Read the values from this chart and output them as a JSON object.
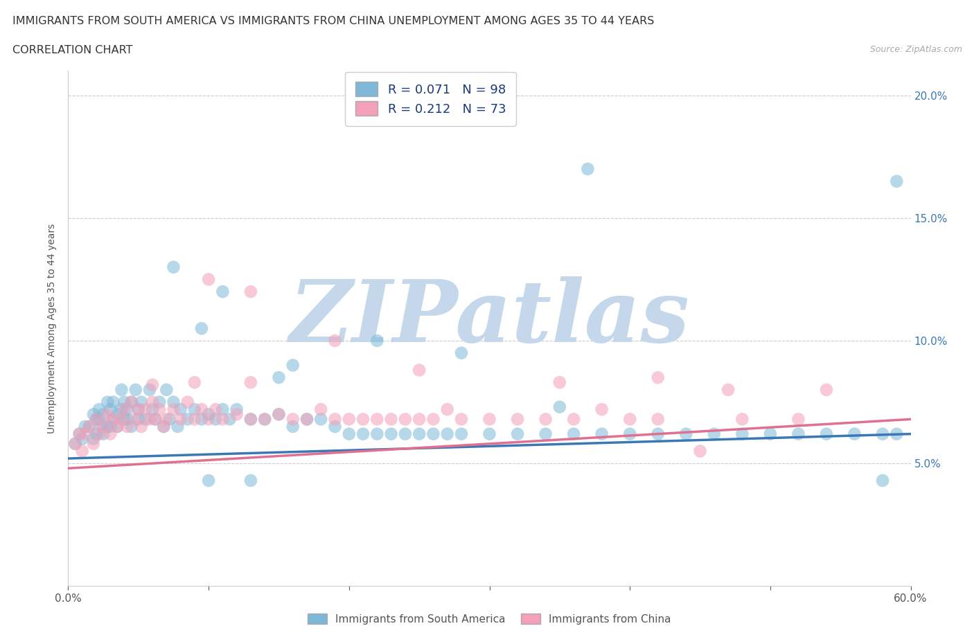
{
  "title_line1": "IMMIGRANTS FROM SOUTH AMERICA VS IMMIGRANTS FROM CHINA UNEMPLOYMENT AMONG AGES 35 TO 44 YEARS",
  "title_line2": "CORRELATION CHART",
  "source": "Source: ZipAtlas.com",
  "ylabel": "Unemployment Among Ages 35 to 44 years",
  "xlim": [
    0.0,
    0.6
  ],
  "ylim": [
    0.0,
    0.21
  ],
  "xticks": [
    0.0,
    0.1,
    0.2,
    0.3,
    0.4,
    0.5,
    0.6
  ],
  "xtick_labels": [
    "0.0%",
    "",
    "",
    "",
    "",
    "",
    "60.0%"
  ],
  "yticks": [
    0.05,
    0.1,
    0.15,
    0.2
  ],
  "ytick_labels": [
    "5.0%",
    "10.0%",
    "15.0%",
    "20.0%"
  ],
  "blue_color": "#7db8d8",
  "pink_color": "#f4a0b8",
  "legend_R1": "R = 0.071",
  "legend_N1": "N = 98",
  "legend_R2": "R = 0.212",
  "legend_N2": "N = 73",
  "watermark_text": "ZIPatlas",
  "watermark_color": "#c5d8eb",
  "blue_trend_x": [
    0.0,
    0.6
  ],
  "blue_trend_y": [
    0.052,
    0.062
  ],
  "pink_trend_x": [
    0.0,
    0.6
  ],
  "pink_trend_y": [
    0.048,
    0.068
  ],
  "grid_color": "#cccccc",
  "title_fontsize": 11.5,
  "label_fontsize": 10,
  "tick_fontsize": 11,
  "blue_scatter_x": [
    0.005,
    0.008,
    0.01,
    0.012,
    0.015,
    0.018,
    0.018,
    0.02,
    0.02,
    0.022,
    0.022,
    0.024,
    0.025,
    0.025,
    0.028,
    0.028,
    0.03,
    0.03,
    0.032,
    0.032,
    0.035,
    0.035,
    0.038,
    0.038,
    0.04,
    0.04,
    0.042,
    0.042,
    0.045,
    0.045,
    0.048,
    0.05,
    0.05,
    0.052,
    0.055,
    0.058,
    0.06,
    0.062,
    0.065,
    0.068,
    0.07,
    0.072,
    0.075,
    0.078,
    0.08,
    0.085,
    0.09,
    0.095,
    0.1,
    0.105,
    0.11,
    0.115,
    0.12,
    0.13,
    0.14,
    0.15,
    0.16,
    0.17,
    0.18,
    0.19,
    0.2,
    0.21,
    0.22,
    0.23,
    0.24,
    0.25,
    0.26,
    0.27,
    0.28,
    0.3,
    0.32,
    0.34,
    0.36,
    0.38,
    0.4,
    0.42,
    0.44,
    0.46,
    0.48,
    0.5,
    0.52,
    0.54,
    0.56,
    0.58,
    0.59,
    0.15,
    0.28,
    0.37,
    0.59,
    0.075,
    0.095,
    0.11,
    0.16,
    0.22,
    0.35,
    0.58,
    0.1,
    0.13
  ],
  "blue_scatter_y": [
    0.058,
    0.062,
    0.06,
    0.065,
    0.065,
    0.06,
    0.07,
    0.062,
    0.068,
    0.068,
    0.072,
    0.065,
    0.07,
    0.062,
    0.075,
    0.065,
    0.072,
    0.065,
    0.068,
    0.075,
    0.07,
    0.065,
    0.072,
    0.08,
    0.068,
    0.075,
    0.072,
    0.068,
    0.075,
    0.065,
    0.08,
    0.072,
    0.068,
    0.075,
    0.068,
    0.08,
    0.072,
    0.068,
    0.075,
    0.065,
    0.08,
    0.068,
    0.075,
    0.065,
    0.072,
    0.068,
    0.072,
    0.068,
    0.07,
    0.068,
    0.072,
    0.068,
    0.072,
    0.068,
    0.068,
    0.07,
    0.065,
    0.068,
    0.068,
    0.065,
    0.062,
    0.062,
    0.062,
    0.062,
    0.062,
    0.062,
    0.062,
    0.062,
    0.062,
    0.062,
    0.062,
    0.062,
    0.062,
    0.062,
    0.062,
    0.062,
    0.062,
    0.062,
    0.062,
    0.062,
    0.062,
    0.062,
    0.062,
    0.062,
    0.062,
    0.085,
    0.095,
    0.17,
    0.165,
    0.13,
    0.105,
    0.12,
    0.09,
    0.1,
    0.073,
    0.043,
    0.043,
    0.043
  ],
  "pink_scatter_x": [
    0.005,
    0.008,
    0.01,
    0.012,
    0.015,
    0.018,
    0.02,
    0.022,
    0.025,
    0.028,
    0.03,
    0.032,
    0.035,
    0.038,
    0.04,
    0.042,
    0.045,
    0.048,
    0.05,
    0.052,
    0.055,
    0.058,
    0.06,
    0.062,
    0.065,
    0.068,
    0.07,
    0.075,
    0.08,
    0.085,
    0.09,
    0.095,
    0.1,
    0.105,
    0.11,
    0.12,
    0.13,
    0.14,
    0.15,
    0.16,
    0.17,
    0.18,
    0.19,
    0.2,
    0.21,
    0.22,
    0.23,
    0.24,
    0.25,
    0.26,
    0.27,
    0.28,
    0.3,
    0.32,
    0.34,
    0.36,
    0.38,
    0.4,
    0.42,
    0.45,
    0.48,
    0.52,
    0.1,
    0.13,
    0.19,
    0.35,
    0.47,
    0.54,
    0.25,
    0.06,
    0.09,
    0.13,
    0.42
  ],
  "pink_scatter_y": [
    0.058,
    0.062,
    0.055,
    0.062,
    0.065,
    0.058,
    0.068,
    0.062,
    0.065,
    0.07,
    0.062,
    0.068,
    0.065,
    0.068,
    0.072,
    0.065,
    0.075,
    0.068,
    0.072,
    0.065,
    0.072,
    0.068,
    0.075,
    0.068,
    0.072,
    0.065,
    0.068,
    0.072,
    0.068,
    0.075,
    0.068,
    0.072,
    0.068,
    0.072,
    0.068,
    0.07,
    0.068,
    0.068,
    0.07,
    0.068,
    0.068,
    0.072,
    0.068,
    0.068,
    0.068,
    0.068,
    0.068,
    0.068,
    0.068,
    0.068,
    0.072,
    0.068,
    0.068,
    0.068,
    0.068,
    0.068,
    0.072,
    0.068,
    0.068,
    0.055,
    0.068,
    0.068,
    0.125,
    0.12,
    0.1,
    0.083,
    0.08,
    0.08,
    0.088,
    0.082,
    0.083,
    0.083,
    0.085
  ]
}
